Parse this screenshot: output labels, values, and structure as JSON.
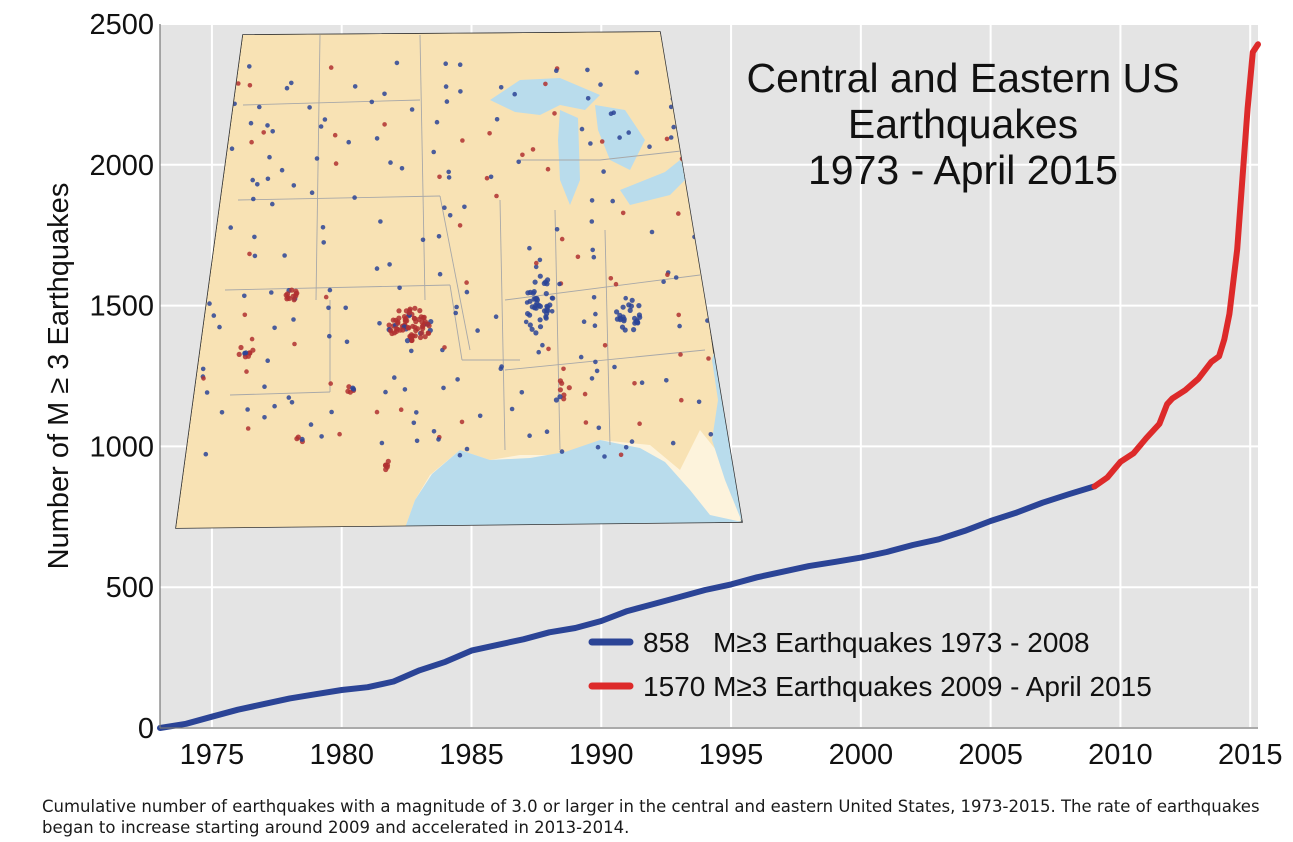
{
  "chart_data": {
    "type": "line",
    "title": [
      "Central and Eastern US",
      "Earthquakes",
      "1973 - April 2015"
    ],
    "xlabel": "",
    "ylabel": "Number of M ≥ 3 Earthquakes",
    "xlim": [
      1973,
      2015.3
    ],
    "ylim": [
      0,
      2500
    ],
    "xticks": [
      1975,
      1980,
      1985,
      1990,
      1995,
      2000,
      2005,
      2010,
      2015
    ],
    "yticks": [
      0,
      500,
      1000,
      1500,
      2000,
      2500
    ],
    "grid": true,
    "legend_placement": "bottom-right",
    "series": [
      {
        "name": "858   M≥3 Earthquakes 1973 - 2008",
        "color": "#2b4496",
        "x": [
          1973,
          1974,
          1975,
          1976,
          1977,
          1978,
          1979,
          1980,
          1981,
          1982,
          1983,
          1984,
          1985,
          1986,
          1987,
          1988,
          1989,
          1990,
          1991,
          1992,
          1993,
          1994,
          1995,
          1996,
          1997,
          1998,
          1999,
          2000,
          2001,
          2002,
          2003,
          2004,
          2005,
          2006,
          2007,
          2008,
          2009
        ],
        "values": [
          0,
          15,
          40,
          65,
          85,
          105,
          120,
          135,
          145,
          165,
          205,
          235,
          275,
          295,
          315,
          340,
          355,
          380,
          415,
          440,
          465,
          490,
          510,
          535,
          555,
          575,
          590,
          605,
          625,
          650,
          670,
          700,
          735,
          765,
          800,
          830,
          858
        ]
      },
      {
        "name": "1570 M≥3 Earthquakes 2009 - April 2015",
        "color": "#dd2a2a",
        "x": [
          2009,
          2009.5,
          2010,
          2010.5,
          2011,
          2011.5,
          2011.8,
          2012,
          2012.5,
          2013,
          2013.5,
          2013.8,
          2014,
          2014.2,
          2014.5,
          2014.7,
          2014.9,
          2015.1,
          2015.3
        ],
        "values": [
          858,
          890,
          945,
          975,
          1030,
          1080,
          1150,
          1170,
          1200,
          1240,
          1300,
          1320,
          1380,
          1470,
          1700,
          1950,
          2200,
          2400,
          2428
        ]
      }
    ],
    "inset_map": {
      "description_visible": "map of central and eastern United States with earthquake epicenters",
      "dot_colors": [
        "#2b4496",
        "#b03030"
      ],
      "land_color": "#f8e2b4",
      "water_color": "#b9dcec"
    }
  },
  "caption": "Cumulative number of earthquakes with a magnitude of 3.0 or larger in the central and eastern United States, 1973-2015. The rate of earthquakes began to increase starting around 2009 and accelerated in 2013-2014."
}
